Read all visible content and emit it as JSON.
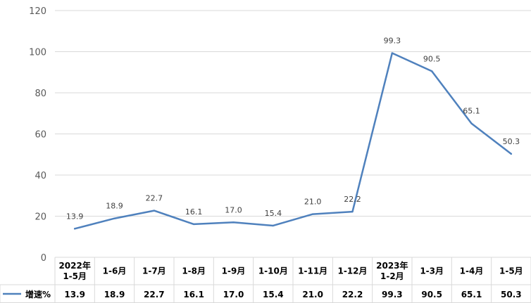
{
  "chart_data": {
    "type": "line",
    "categories": [
      [
        "2022年",
        "1-5月"
      ],
      [
        "1-6月"
      ],
      [
        "1-7月"
      ],
      [
        "1-8月"
      ],
      [
        "1-9月"
      ],
      [
        "1-10月"
      ],
      [
        "1-11月"
      ],
      [
        "1-12月"
      ],
      [
        "2023年",
        "1-2月"
      ],
      [
        "1-3月"
      ],
      [
        "1-4月"
      ],
      [
        "1-5月"
      ]
    ],
    "series": [
      {
        "name": "增速%",
        "values": [
          13.9,
          18.9,
          22.7,
          16.1,
          17.0,
          15.4,
          21.0,
          22.2,
          99.3,
          90.5,
          65.1,
          50.3
        ]
      }
    ],
    "value_labels": [
      "13.9",
      "18.9",
      "22.7",
      "16.1",
      "17.0",
      "15.4",
      "21.0",
      "22.2",
      "99.3",
      "90.5",
      "65.1",
      "50.3"
    ],
    "ylim": [
      0,
      120
    ],
    "yticks": [
      "0",
      "20",
      "40",
      "60",
      "80",
      "100",
      "120"
    ],
    "grid": true,
    "data_table": true,
    "line_color": "#4f81bd",
    "grid_color": "#d9d9d9"
  }
}
